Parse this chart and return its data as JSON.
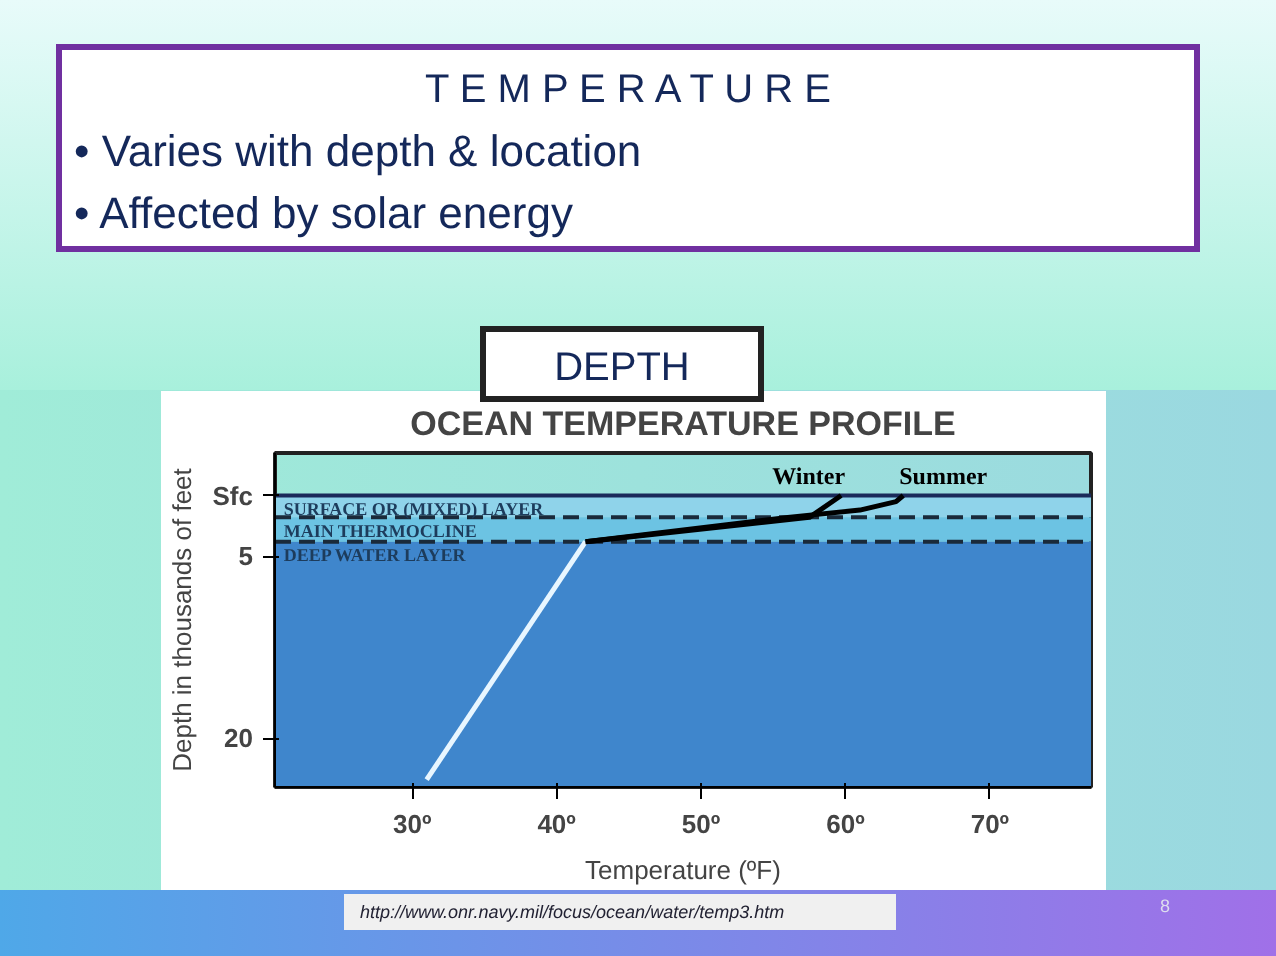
{
  "chart_data": {
    "type": "line",
    "title": "OCEAN TEMPERATURE PROFILE",
    "xlabel": "Temperature (ºF)",
    "ylabel": "Depth in thousands of feet",
    "xlim": [
      20.5,
      77
    ],
    "xticks": [
      {
        "value": 30,
        "label": "30º"
      },
      {
        "value": 40,
        "label": "40º"
      },
      {
        "value": 50,
        "label": "50º"
      },
      {
        "value": 60,
        "label": "60º"
      },
      {
        "value": 70,
        "label": "70º"
      }
    ],
    "ylim": [
      24,
      -3.5
    ],
    "yticks": [
      {
        "value": 0,
        "label": "Sfc"
      },
      5,
      20
    ],
    "series": [
      {
        "color": "#e8f6ff",
        "x": [
          31,
          42
        ],
        "values": [
          23.4,
          3.8
        ]
      },
      {
        "name": "Winter",
        "color": "#000000",
        "x": [
          42,
          57.5,
          59.7
        ],
        "values": [
          3.8,
          1.8,
          0
        ]
      },
      {
        "name": "Summer",
        "color": "#000000",
        "x": [
          42,
          56,
          61,
          63.5,
          64
        ],
        "values": [
          3.8,
          1.8,
          1.2,
          0.5,
          0
        ]
      }
    ],
    "bands": [
      {
        "axis": "y",
        "from": 0,
        "to": 1.8,
        "label": "SURFACE  OR (MIXED) LAYER",
        "color": "#8fd3ea"
      },
      {
        "axis": "y",
        "from": 1.8,
        "to": 3.8,
        "label": "MAIN THERMOCLINE",
        "color": "#6cc3e3"
      },
      {
        "axis": "y",
        "from": 3.8,
        "to": 24,
        "label": "DEEP WATER LAYER",
        "color": "#3f86cc"
      }
    ],
    "ref_lines": [
      {
        "axis": "y",
        "value": 0,
        "color": "#1a2a5a",
        "line_style": "solid"
      },
      {
        "axis": "y",
        "value": 1.8,
        "color": "#1a2a3a",
        "line_style": "dashed"
      },
      {
        "axis": "y",
        "value": 3.8,
        "color": "#1a2a3a",
        "line_style": "dashed"
      }
    ],
    "annotations": [
      "T E M P E R A T U R E",
      "• Varies with depth & location",
      "• Affected by solar energy",
      "DEPTH",
      "http://www.onr.navy.mil/focus/ocean/water/temp3.htm",
      "8"
    ]
  }
}
